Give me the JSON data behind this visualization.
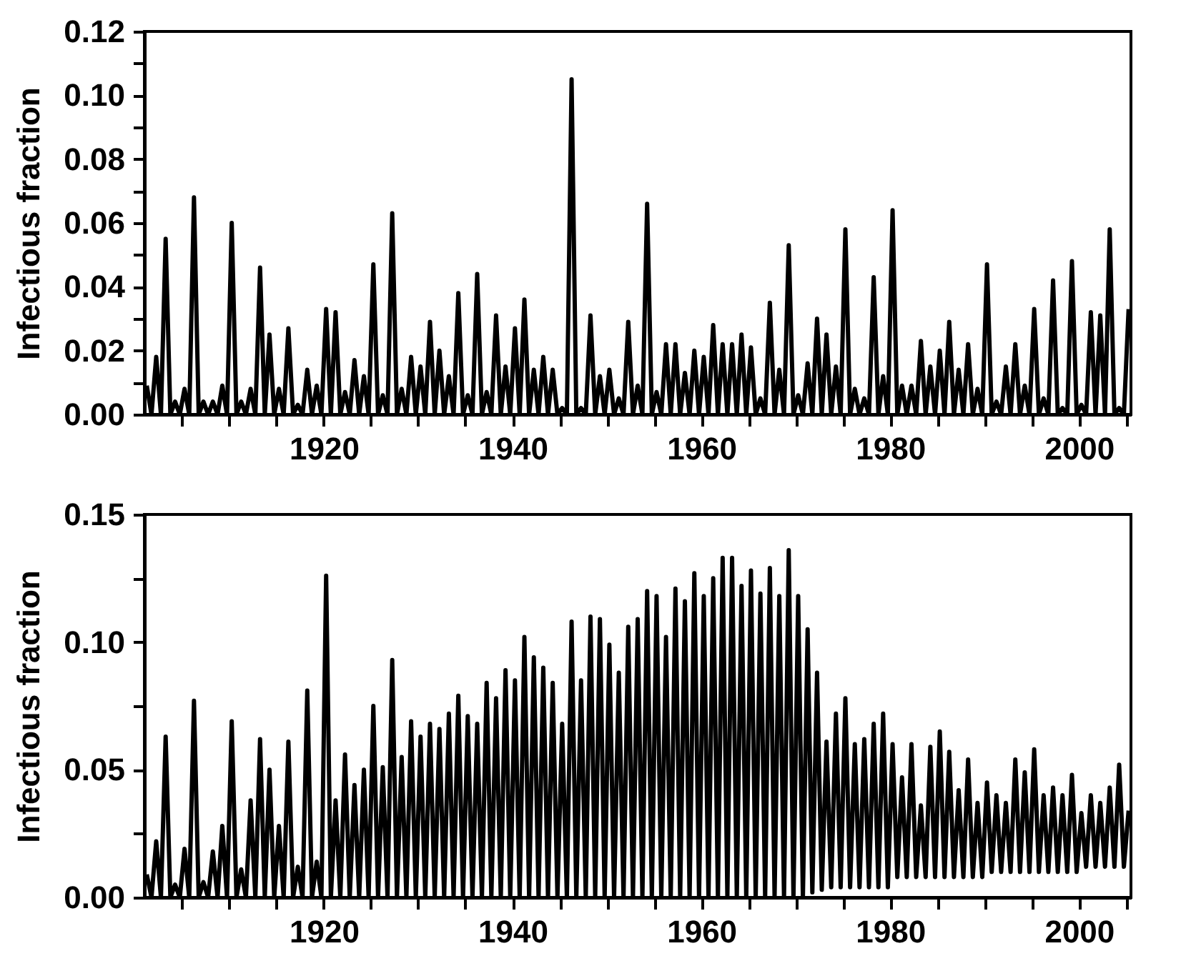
{
  "chart_data": [
    {
      "type": "line",
      "ylabel": "Infectious fraction",
      "x": [
        1901.25,
        1901.75,
        1902.25,
        1902.75,
        1903.25,
        1903.75,
        1904.25,
        1904.75,
        1905.25,
        1905.75,
        1906.25,
        1906.75,
        1907.25,
        1907.75,
        1908.25,
        1908.75,
        1909.25,
        1909.75,
        1910.25,
        1910.75,
        1911.25,
        1911.75,
        1912.25,
        1912.75,
        1913.25,
        1913.75,
        1914.25,
        1914.75,
        1915.25,
        1915.75,
        1916.25,
        1916.75,
        1917.25,
        1917.75,
        1918.25,
        1918.75,
        1919.25,
        1919.75,
        1920.25,
        1920.75,
        1921.25,
        1921.75,
        1922.25,
        1922.75,
        1923.25,
        1923.75,
        1924.25,
        1924.75,
        1925.25,
        1925.75,
        1926.25,
        1926.75,
        1927.25,
        1927.75,
        1928.25,
        1928.75,
        1929.25,
        1929.75,
        1930.25,
        1930.75,
        1931.25,
        1931.75,
        1932.25,
        1932.75,
        1933.25,
        1933.75,
        1934.25,
        1934.75,
        1935.25,
        1935.75,
        1936.25,
        1936.75,
        1937.25,
        1937.75,
        1938.25,
        1938.75,
        1939.25,
        1939.75,
        1940.25,
        1940.75,
        1941.25,
        1941.75,
        1942.25,
        1942.75,
        1943.25,
        1943.75,
        1944.25,
        1944.75,
        1945.25,
        1945.75,
        1946.25,
        1946.75,
        1947.25,
        1947.75,
        1948.25,
        1948.75,
        1949.25,
        1949.75,
        1950.25,
        1950.75,
        1951.25,
        1951.75,
        1952.25,
        1952.75,
        1953.25,
        1953.75,
        1954.25,
        1954.75,
        1955.25,
        1955.75,
        1956.25,
        1956.75,
        1957.25,
        1957.75,
        1958.25,
        1958.75,
        1959.25,
        1959.75,
        1960.25,
        1960.75,
        1961.25,
        1961.75,
        1962.25,
        1962.75,
        1963.25,
        1963.75,
        1964.25,
        1964.75,
        1965.25,
        1965.75,
        1966.25,
        1966.75,
        1967.25,
        1967.75,
        1968.25,
        1968.75,
        1969.25,
        1969.75,
        1970.25,
        1970.75,
        1971.25,
        1971.75,
        1972.25,
        1972.75,
        1973.25,
        1973.75,
        1974.25,
        1974.75,
        1975.25,
        1975.75,
        1976.25,
        1976.75,
        1977.25,
        1977.75,
        1978.25,
        1978.75,
        1979.25,
        1979.75,
        1980.25,
        1980.75,
        1981.25,
        1981.75,
        1982.25,
        1982.75,
        1983.25,
        1983.75,
        1984.25,
        1984.75,
        1985.25,
        1985.75,
        1986.25,
        1986.75,
        1987.25,
        1987.75,
        1988.25,
        1988.75,
        1989.25,
        1989.75,
        1990.25,
        1990.75,
        1991.25,
        1991.75,
        1992.25,
        1992.75,
        1993.25,
        1993.75,
        1994.25,
        1994.75,
        1995.25,
        1995.75,
        1996.25,
        1996.75,
        1997.25,
        1997.75,
        1998.25,
        1998.75,
        1999.25,
        1999.75,
        2000.25,
        2000.75,
        2001.25,
        2001.75,
        2002.25,
        2002.75,
        2003.25,
        2003.75,
        2004.25,
        2004.75,
        2005.25
      ],
      "series": [
        {
          "color": "#000000",
          "values": [
            0.009,
            0,
            0.018,
            0,
            0.055,
            0,
            0.004,
            0,
            0.008,
            0,
            0.068,
            0,
            0.004,
            0,
            0.004,
            0,
            0.009,
            0,
            0.06,
            0,
            0.004,
            0,
            0.008,
            0,
            0.046,
            0,
            0.025,
            0,
            0.008,
            0,
            0.027,
            0,
            0.003,
            0,
            0.014,
            0,
            0.009,
            0,
            0.033,
            0,
            0.032,
            0,
            0.007,
            0,
            0.017,
            0,
            0.012,
            0,
            0.047,
            0,
            0.006,
            0,
            0.063,
            0,
            0.008,
            0,
            0.018,
            0,
            0.015,
            0,
            0.029,
            0,
            0.02,
            0,
            0.012,
            0,
            0.038,
            0,
            0.006,
            0,
            0.044,
            0,
            0.007,
            0,
            0.031,
            0,
            0.015,
            0,
            0.027,
            0,
            0.036,
            0,
            0.014,
            0,
            0.018,
            0,
            0.014,
            0,
            0.002,
            0,
            0.105,
            0,
            0.002,
            0,
            0.031,
            0,
            0.012,
            0,
            0.014,
            0,
            0.005,
            0,
            0.029,
            0,
            0.009,
            0,
            0.066,
            0,
            0.007,
            0,
            0.022,
            0,
            0.022,
            0,
            0.013,
            0,
            0.02,
            0,
            0.018,
            0,
            0.028,
            0,
            0.022,
            0,
            0.022,
            0,
            0.025,
            0,
            0.021,
            0,
            0.005,
            0,
            0.035,
            0,
            0.014,
            0,
            0.053,
            0,
            0.006,
            0,
            0.016,
            0,
            0.03,
            0,
            0.025,
            0,
            0.015,
            0,
            0.058,
            0,
            0.008,
            0,
            0.005,
            0,
            0.043,
            0,
            0.012,
            0,
            0.064,
            0,
            0.009,
            0,
            0.009,
            0,
            0.023,
            0,
            0.015,
            0,
            0.02,
            0,
            0.029,
            0,
            0.014,
            0,
            0.022,
            0,
            0.008,
            0,
            0.047,
            0,
            0.004,
            0,
            0.015,
            0,
            0.022,
            0,
            0.009,
            0,
            0.033,
            0,
            0.005,
            0,
            0.042,
            0,
            0.002,
            0,
            0.048,
            0,
            0.003,
            0,
            0.032,
            0,
            0.031,
            0,
            0.058,
            0,
            0.002,
            0,
            0.033
          ]
        }
      ],
      "xlim": [
        1901,
        2005.5
      ],
      "xticks": [
        {
          "value": 1905,
          "label": null
        },
        {
          "value": 1910,
          "label": null
        },
        {
          "value": 1915,
          "label": null
        },
        1920,
        {
          "value": 1925,
          "label": null
        },
        {
          "value": 1930,
          "label": null
        },
        {
          "value": 1935,
          "label": null
        },
        1940,
        {
          "value": 1945,
          "label": null
        },
        {
          "value": 1950,
          "label": null
        },
        {
          "value": 1955,
          "label": null
        },
        1960,
        {
          "value": 1965,
          "label": null
        },
        {
          "value": 1970,
          "label": null
        },
        {
          "value": 1975,
          "label": null
        },
        1980,
        {
          "value": 1985,
          "label": null
        },
        {
          "value": 1990,
          "label": null
        },
        {
          "value": 1995,
          "label": null
        },
        2000,
        {
          "value": 2005,
          "label": null
        }
      ],
      "ylim": [
        0,
        0.12
      ],
      "yticks": [
        {
          "value": 0,
          "label": "0.00"
        },
        {
          "value": 0.01,
          "label": null
        },
        {
          "value": 0.02,
          "label": "0.02"
        },
        {
          "value": 0.03,
          "label": null
        },
        {
          "value": 0.04,
          "label": "0.04"
        },
        {
          "value": 0.05,
          "label": null
        },
        {
          "value": 0.06,
          "label": "0.06"
        },
        {
          "value": 0.07,
          "label": null
        },
        {
          "value": 0.08,
          "label": "0.08"
        },
        {
          "value": 0.09,
          "label": null
        },
        {
          "value": 0.1,
          "label": "0.10"
        },
        {
          "value": 0.11,
          "label": null
        },
        {
          "value": 0.12,
          "label": "0.12"
        }
      ]
    },
    {
      "type": "line",
      "ylabel": "Infectious fraction",
      "x": [
        1901.25,
        1901.75,
        1902.25,
        1902.75,
        1903.25,
        1903.75,
        1904.25,
        1904.75,
        1905.25,
        1905.75,
        1906.25,
        1906.75,
        1907.25,
        1907.75,
        1908.25,
        1908.75,
        1909.25,
        1909.75,
        1910.25,
        1910.75,
        1911.25,
        1911.75,
        1912.25,
        1912.75,
        1913.25,
        1913.75,
        1914.25,
        1914.75,
        1915.25,
        1915.75,
        1916.25,
        1916.75,
        1917.25,
        1917.75,
        1918.25,
        1918.75,
        1919.25,
        1919.75,
        1920.25,
        1920.75,
        1921.25,
        1921.75,
        1922.25,
        1922.75,
        1923.25,
        1923.75,
        1924.25,
        1924.75,
        1925.25,
        1925.75,
        1926.25,
        1926.75,
        1927.25,
        1927.75,
        1928.25,
        1928.75,
        1929.25,
        1929.75,
        1930.25,
        1930.75,
        1931.25,
        1931.75,
        1932.25,
        1932.75,
        1933.25,
        1933.75,
        1934.25,
        1934.75,
        1935.25,
        1935.75,
        1936.25,
        1936.75,
        1937.25,
        1937.75,
        1938.25,
        1938.75,
        1939.25,
        1939.75,
        1940.25,
        1940.75,
        1941.25,
        1941.75,
        1942.25,
        1942.75,
        1943.25,
        1943.75,
        1944.25,
        1944.75,
        1945.25,
        1945.75,
        1946.25,
        1946.75,
        1947.25,
        1947.75,
        1948.25,
        1948.75,
        1949.25,
        1949.75,
        1950.25,
        1950.75,
        1951.25,
        1951.75,
        1952.25,
        1952.75,
        1953.25,
        1953.75,
        1954.25,
        1954.75,
        1955.25,
        1955.75,
        1956.25,
        1956.75,
        1957.25,
        1957.75,
        1958.25,
        1958.75,
        1959.25,
        1959.75,
        1960.25,
        1960.75,
        1961.25,
        1961.75,
        1962.25,
        1962.75,
        1963.25,
        1963.75,
        1964.25,
        1964.75,
        1965.25,
        1965.75,
        1966.25,
        1966.75,
        1967.25,
        1967.75,
        1968.25,
        1968.75,
        1969.25,
        1969.75,
        1970.25,
        1970.75,
        1971.25,
        1971.75,
        1972.25,
        1972.75,
        1973.25,
        1973.75,
        1974.25,
        1974.75,
        1975.25,
        1975.75,
        1976.25,
        1976.75,
        1977.25,
        1977.75,
        1978.25,
        1978.75,
        1979.25,
        1979.75,
        1980.25,
        1980.75,
        1981.25,
        1981.75,
        1982.25,
        1982.75,
        1983.25,
        1983.75,
        1984.25,
        1984.75,
        1985.25,
        1985.75,
        1986.25,
        1986.75,
        1987.25,
        1987.75,
        1988.25,
        1988.75,
        1989.25,
        1989.75,
        1990.25,
        1990.75,
        1991.25,
        1991.75,
        1992.25,
        1992.75,
        1993.25,
        1993.75,
        1994.25,
        1994.75,
        1995.25,
        1995.75,
        1996.25,
        1996.75,
        1997.25,
        1997.75,
        1998.25,
        1998.75,
        1999.25,
        1999.75,
        2000.25,
        2000.75,
        2001.25,
        2001.75,
        2002.25,
        2002.75,
        2003.25,
        2003.75,
        2004.25,
        2004.75,
        2005.25
      ],
      "series": [
        {
          "color": "#000000",
          "values": [
            0.009,
            0,
            0.022,
            0,
            0.063,
            0,
            0.005,
            0,
            0.019,
            0,
            0.077,
            0,
            0.006,
            0,
            0.018,
            0,
            0.028,
            0,
            0.069,
            0,
            0.011,
            0,
            0.038,
            0,
            0.062,
            0,
            0.05,
            0,
            0.028,
            0,
            0.061,
            0,
            0.012,
            0,
            0.081,
            0,
            0.014,
            0,
            0.126,
            0,
            0.038,
            0,
            0.056,
            0,
            0.044,
            0,
            0.05,
            0,
            0.075,
            0,
            0.051,
            0,
            0.093,
            0,
            0.055,
            0,
            0.069,
            0,
            0.063,
            0,
            0.068,
            0,
            0.066,
            0,
            0.072,
            0,
            0.079,
            0,
            0.071,
            0,
            0.068,
            0,
            0.084,
            0,
            0.078,
            0,
            0.089,
            0,
            0.085,
            0,
            0.102,
            0,
            0.094,
            0,
            0.09,
            0,
            0.084,
            0,
            0.068,
            0,
            0.108,
            0,
            0.085,
            0,
            0.11,
            0,
            0.109,
            0,
            0.099,
            0,
            0.088,
            0,
            0.106,
            0,
            0.109,
            0,
            0.12,
            0,
            0.118,
            0,
            0.102,
            0,
            0.121,
            0,
            0.116,
            0,
            0.127,
            0,
            0.118,
            0,
            0.125,
            0,
            0.133,
            0,
            0.133,
            0,
            0.122,
            0,
            0.128,
            0,
            0.119,
            0,
            0.129,
            0,
            0.118,
            0,
            0.136,
            0,
            0.118,
            0,
            0.105,
            0.002,
            0.088,
            0.003,
            0.061,
            0.004,
            0.072,
            0.004,
            0.078,
            0.004,
            0.06,
            0.004,
            0.062,
            0.004,
            0.068,
            0.004,
            0.072,
            0.004,
            0.06,
            0.008,
            0.047,
            0.008,
            0.06,
            0.008,
            0.036,
            0.008,
            0.059,
            0.008,
            0.065,
            0.008,
            0.057,
            0.008,
            0.042,
            0.008,
            0.054,
            0.008,
            0.037,
            0.008,
            0.045,
            0.01,
            0.04,
            0.01,
            0.037,
            0.01,
            0.054,
            0.01,
            0.049,
            0.01,
            0.058,
            0.01,
            0.04,
            0.01,
            0.043,
            0.01,
            0.04,
            0.01,
            0.048,
            0.01,
            0.033,
            0.012,
            0.04,
            0.012,
            0.037,
            0.012,
            0.043,
            0.012,
            0.052,
            0.012,
            0.034
          ]
        }
      ],
      "xlim": [
        1901,
        2005.5
      ],
      "xticks": [
        {
          "value": 1905,
          "label": null
        },
        {
          "value": 1910,
          "label": null
        },
        {
          "value": 1915,
          "label": null
        },
        1920,
        {
          "value": 1925,
          "label": null
        },
        {
          "value": 1930,
          "label": null
        },
        {
          "value": 1935,
          "label": null
        },
        1940,
        {
          "value": 1945,
          "label": null
        },
        {
          "value": 1950,
          "label": null
        },
        {
          "value": 1955,
          "label": null
        },
        1960,
        {
          "value": 1965,
          "label": null
        },
        {
          "value": 1970,
          "label": null
        },
        {
          "value": 1975,
          "label": null
        },
        1980,
        {
          "value": 1985,
          "label": null
        },
        {
          "value": 1990,
          "label": null
        },
        {
          "value": 1995,
          "label": null
        },
        2000,
        {
          "value": 2005,
          "label": null
        }
      ],
      "ylim": [
        0,
        0.15
      ],
      "yticks": [
        {
          "value": 0,
          "label": "0.00"
        },
        {
          "value": 0.025,
          "label": null
        },
        {
          "value": 0.05,
          "label": "0.05"
        },
        {
          "value": 0.075,
          "label": null
        },
        {
          "value": 0.1,
          "label": "0.10"
        },
        {
          "value": 0.125,
          "label": null
        },
        {
          "value": 0.15,
          "label": "0.15"
        }
      ]
    }
  ]
}
